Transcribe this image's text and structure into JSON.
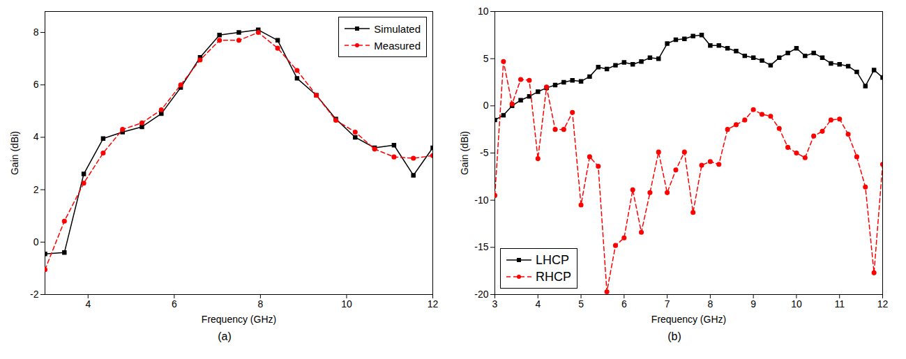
{
  "chart_data": [
    {
      "type": "line",
      "title": "(a)",
      "x_label": "Frequency (GHz)",
      "y_label": "Gain (dBi)",
      "xlim": [
        3,
        12
      ],
      "xticks": [
        4,
        6,
        8,
        10,
        12
      ],
      "ylim": [
        -2,
        8.8
      ],
      "yticks": [
        -2,
        0,
        2,
        4,
        6,
        8
      ],
      "legend": "top-right",
      "x": [
        3.0,
        3.45,
        3.9,
        4.35,
        4.8,
        5.25,
        5.7,
        6.15,
        6.6,
        7.05,
        7.5,
        7.95,
        8.4,
        8.85,
        9.3,
        9.75,
        10.2,
        10.65,
        11.1,
        11.55,
        12.0
      ],
      "series": [
        {
          "name": "Simulated",
          "color": "#000000",
          "marker": "square",
          "line_style": "solid",
          "values": [
            -0.45,
            -0.4,
            2.6,
            3.95,
            4.2,
            4.4,
            4.9,
            5.9,
            7.05,
            7.9,
            8.0,
            8.1,
            7.7,
            6.25,
            5.6,
            4.7,
            4.0,
            3.6,
            3.7,
            2.55,
            3.6
          ]
        },
        {
          "name": "Measured",
          "color": "#ff0000",
          "marker": "circle",
          "line_style": "dashed",
          "values": [
            -1.05,
            0.8,
            2.25,
            3.4,
            4.3,
            4.55,
            5.05,
            6.0,
            6.95,
            7.7,
            7.7,
            8.0,
            7.4,
            6.55,
            5.6,
            4.65,
            4.2,
            3.55,
            3.25,
            3.2,
            3.3
          ]
        }
      ]
    },
    {
      "type": "line",
      "title": "(b)",
      "x_label": "Frequency (GHz)",
      "y_label": "Gain (dBi)",
      "xlim": [
        3,
        12
      ],
      "xticks": [
        3,
        4,
        5,
        6,
        7,
        8,
        9,
        10,
        11,
        12
      ],
      "ylim": [
        -20,
        10
      ],
      "yticks": [
        -20,
        -15,
        -10,
        -5,
        0,
        5,
        10
      ],
      "legend": "bottom-left",
      "x": [
        3.0,
        3.2,
        3.4,
        3.6,
        3.8,
        4.0,
        4.2,
        4.4,
        4.6,
        4.8,
        5.0,
        5.2,
        5.4,
        5.6,
        5.8,
        6.0,
        6.2,
        6.4,
        6.6,
        6.8,
        7.0,
        7.2,
        7.4,
        7.6,
        7.8,
        8.0,
        8.2,
        8.4,
        8.6,
        8.8,
        9.0,
        9.2,
        9.4,
        9.6,
        9.8,
        10.0,
        10.2,
        10.4,
        10.6,
        10.8,
        11.0,
        11.2,
        11.4,
        11.6,
        11.8,
        12.0
      ],
      "series": [
        {
          "name": "LHCP",
          "color": "#000000",
          "marker": "square",
          "line_style": "solid",
          "values": [
            -1.5,
            -1.0,
            0.0,
            0.6,
            1.0,
            1.5,
            1.9,
            2.2,
            2.5,
            2.7,
            2.6,
            3.1,
            4.1,
            3.9,
            4.3,
            4.6,
            4.4,
            4.7,
            5.1,
            5.0,
            6.6,
            7.0,
            7.1,
            7.4,
            7.5,
            6.4,
            6.4,
            6.1,
            5.8,
            5.3,
            5.1,
            4.8,
            4.3,
            5.1,
            5.6,
            6.1,
            5.3,
            5.6,
            5.1,
            4.5,
            4.4,
            4.2,
            3.6,
            2.1,
            3.8,
            3.0
          ]
        },
        {
          "name": "RHCP",
          "color": "#ff0000",
          "marker": "circle",
          "line_style": "dashed",
          "values": [
            -9.5,
            4.7,
            0.2,
            2.8,
            2.7,
            -5.6,
            2.0,
            -2.5,
            -2.5,
            -0.7,
            -10.5,
            -5.4,
            -6.4,
            -19.7,
            -14.8,
            -14.0,
            -8.9,
            -13.4,
            -9.2,
            -4.9,
            -9.2,
            -6.8,
            -4.9,
            -11.3,
            -6.3,
            -5.9,
            -6.2,
            -2.5,
            -2.0,
            -1.5,
            -0.4,
            -0.9,
            -1.1,
            -2.4,
            -4.4,
            -5.0,
            -5.5,
            -3.2,
            -2.7,
            -1.5,
            -1.4,
            -3.0,
            -5.4,
            -8.6,
            -17.7,
            -6.2
          ]
        }
      ]
    }
  ]
}
